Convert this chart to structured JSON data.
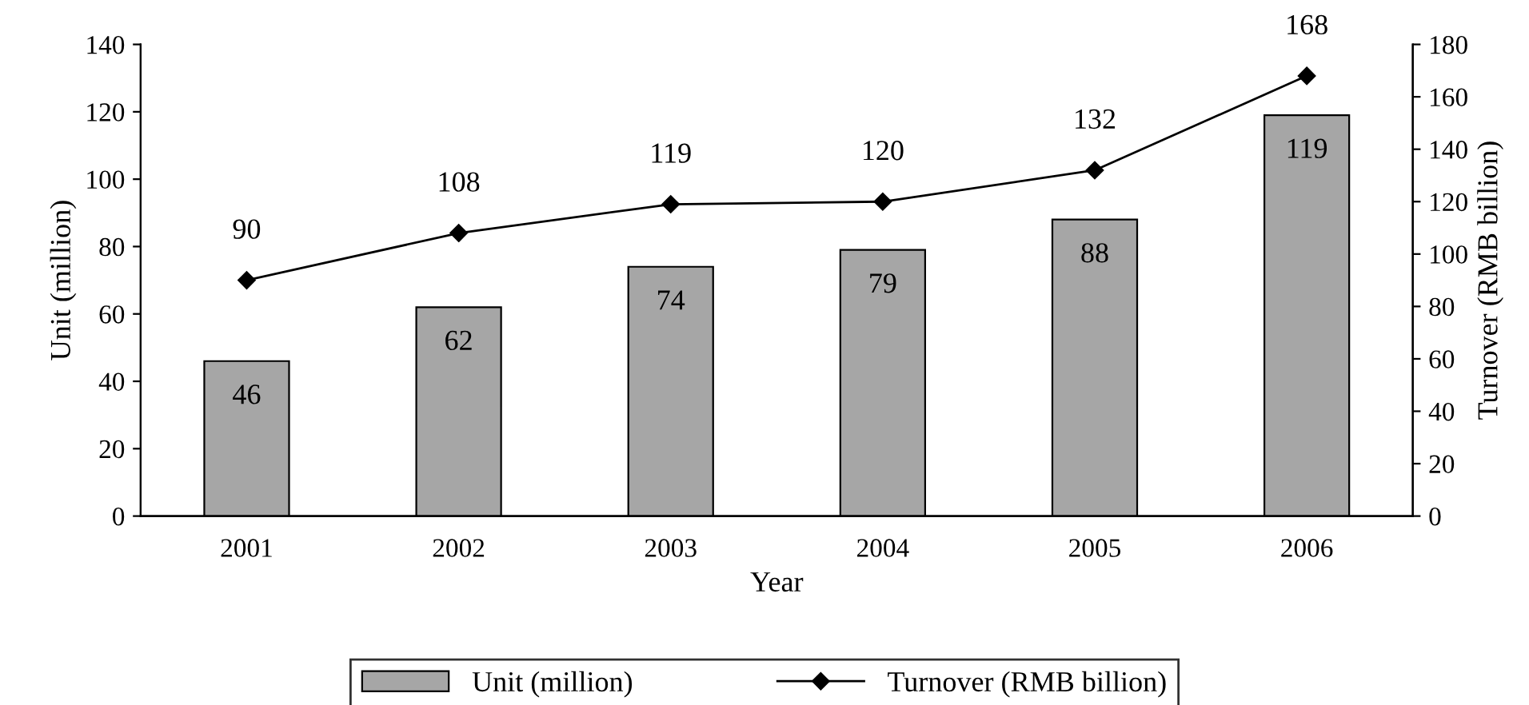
{
  "chart_data": {
    "type": "bar",
    "xlabel": "Year",
    "ylabel": "Unit (million)",
    "y2label": "Turnover (RMB billion)",
    "categories": [
      "2001",
      "2002",
      "2003",
      "2004",
      "2005",
      "2006"
    ],
    "series": [
      {
        "name": "Unit (million)",
        "color": "#a6a6a6",
        "values": [
          46,
          62,
          74,
          79,
          88,
          119
        ]
      },
      {
        "name": "Turnover (RMB billion)",
        "type": "line",
        "axis": "y2",
        "color": "#000000",
        "marker": "diamond",
        "values": [
          90,
          108,
          119,
          120,
          132,
          168
        ]
      }
    ],
    "ylim": [
      0,
      140
    ],
    "yticks": [
      0,
      20,
      40,
      60,
      80,
      100,
      120,
      140
    ],
    "y2lim": [
      0,
      180
    ],
    "y2ticks": [
      0,
      20,
      40,
      60,
      80,
      100,
      120,
      140,
      160,
      180
    ],
    "data_labels": true,
    "grid": false,
    "legend": "bottom"
  }
}
